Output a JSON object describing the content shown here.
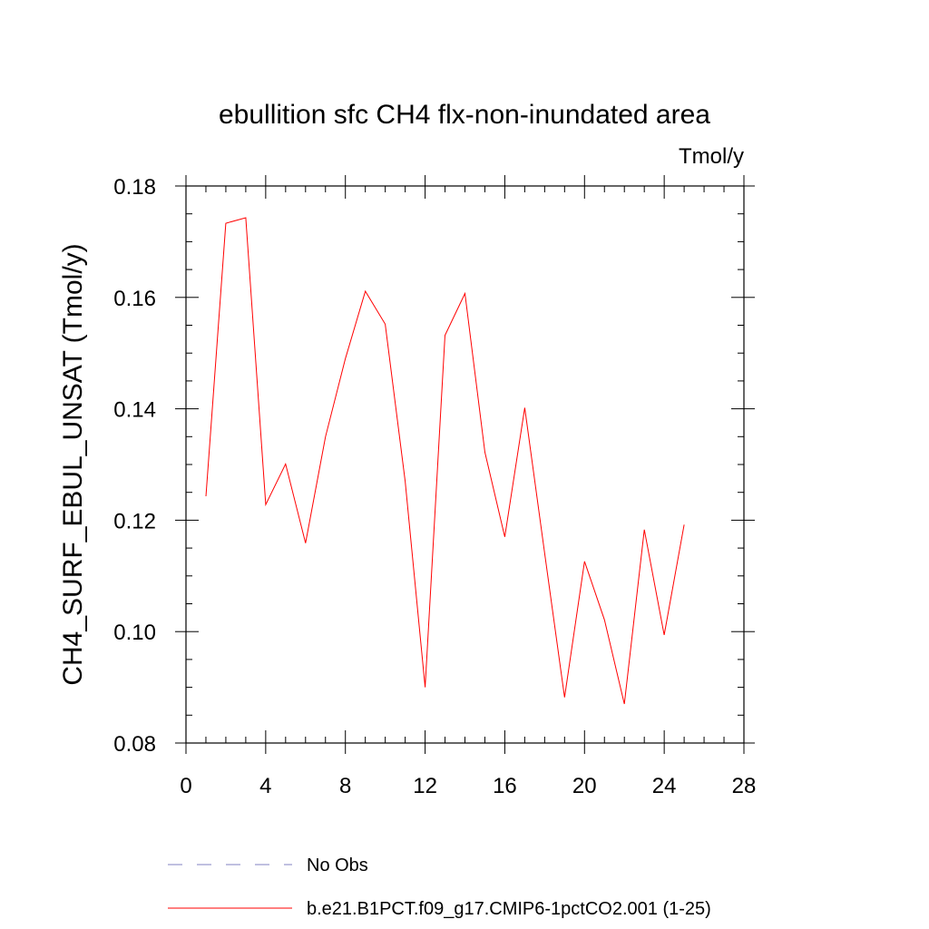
{
  "chart_data": {
    "type": "line",
    "title": "ebullition sfc CH4 flx-non-inundated area",
    "units": "Tmol/y",
    "xlabel": "",
    "ylabel": "CH4_SURF_EBUL_UNSAT  (Tmol/y)",
    "xlim": [
      0,
      28
    ],
    "ylim": [
      0.08,
      0.18
    ],
    "x_ticks": [
      "0",
      "4",
      "8",
      "12",
      "16",
      "20",
      "24",
      "28"
    ],
    "y_ticks": [
      "0.08",
      "0.10",
      "0.12",
      "0.14",
      "0.16",
      "0.18"
    ],
    "grid": false,
    "series": [
      {
        "name": "b.e21.B1PCT.f09_g17.CMIP6-1pctCO2.001 (1-25)",
        "color": "#ff0000",
        "dash": "solid",
        "x": [
          1,
          2,
          3,
          4,
          5,
          6,
          7,
          8,
          9,
          10,
          11,
          12,
          13,
          14,
          15,
          16,
          17,
          18,
          19,
          20,
          21,
          22,
          23,
          24,
          25
        ],
        "values": [
          0.1243,
          0.1733,
          0.1743,
          0.1228,
          0.1301,
          0.1159,
          0.135,
          0.149,
          0.1611,
          0.1552,
          0.127,
          0.09,
          0.1532,
          0.1607,
          0.1322,
          0.117,
          0.1402,
          0.114,
          0.0882,
          0.1126,
          0.1021,
          0.087,
          0.1183,
          0.0994,
          0.1192
        ]
      }
    ],
    "legend": [
      {
        "label": "No Obs",
        "color": "#8080c0",
        "dash": "dashed"
      },
      {
        "label": "b.e21.B1PCT.f09_g17.CMIP6-1pctCO2.001 (1-25)",
        "color": "#ff0000",
        "dash": "solid"
      }
    ],
    "legend_position": "bottom"
  }
}
